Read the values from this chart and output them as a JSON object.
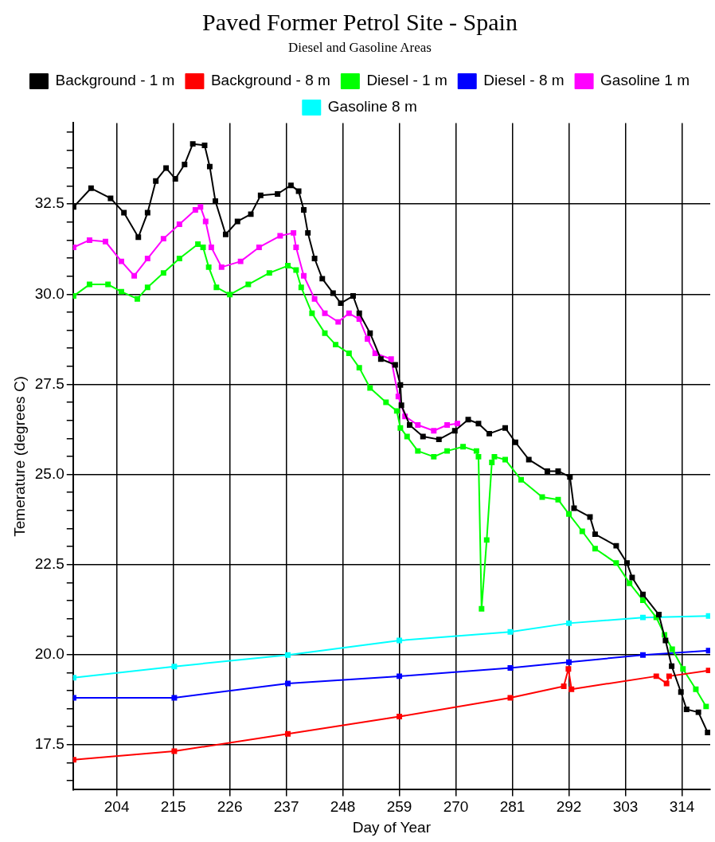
{
  "chart_data": {
    "type": "line",
    "title": "Paved Former Petrol Site - Spain",
    "subtitle": "Diesel and Gasoline Areas",
    "xlabel": "Day of Year",
    "ylabel": "Temerature (degrees C)",
    "xlim": [
      195.5,
      319.5
    ],
    "xticks": [
      204,
      215,
      226,
      237,
      248,
      259,
      270,
      281,
      292,
      303,
      314
    ],
    "ylim": [
      16.25,
      34.75
    ],
    "yticks": [
      {
        "value": 16.5,
        "label": null
      },
      {
        "value": 17,
        "label": null
      },
      {
        "value": 17.5,
        "label": "17.5"
      },
      {
        "value": 18,
        "label": null
      },
      {
        "value": 18.5,
        "label": null
      },
      {
        "value": 19,
        "label": null
      },
      {
        "value": 19.5,
        "label": null
      },
      {
        "value": 20,
        "label": "20.0"
      },
      {
        "value": 20.5,
        "label": null
      },
      {
        "value": 21,
        "label": null
      },
      {
        "value": 21.5,
        "label": null
      },
      {
        "value": 22,
        "label": null
      },
      {
        "value": 22.5,
        "label": "22.5"
      },
      {
        "value": 23,
        "label": null
      },
      {
        "value": 23.5,
        "label": null
      },
      {
        "value": 24,
        "label": null
      },
      {
        "value": 24.5,
        "label": null
      },
      {
        "value": 25,
        "label": "25.0"
      },
      {
        "value": 25.5,
        "label": null
      },
      {
        "value": 26,
        "label": null
      },
      {
        "value": 26.5,
        "label": null
      },
      {
        "value": 27,
        "label": null
      },
      {
        "value": 27.5,
        "label": "27.5"
      },
      {
        "value": 28,
        "label": null
      },
      {
        "value": 28.5,
        "label": null
      },
      {
        "value": 29,
        "label": null
      },
      {
        "value": 29.5,
        "label": null
      },
      {
        "value": 30,
        "label": "30.0"
      },
      {
        "value": 30.5,
        "label": null
      },
      {
        "value": 31,
        "label": null
      },
      {
        "value": 31.5,
        "label": null
      },
      {
        "value": 32,
        "label": null
      },
      {
        "value": 32.5,
        "label": "32.5"
      },
      {
        "value": 33,
        "label": null
      },
      {
        "value": 33.5,
        "label": null
      },
      {
        "value": 34,
        "label": null
      },
      {
        "value": 34.5,
        "label": null
      }
    ],
    "grid": true,
    "legend": "top",
    "marker": "square",
    "line_style": "solid",
    "series": [
      {
        "name": "Background - 1 m",
        "color": "#000000",
        "x": [
          195.6,
          199,
          202.8,
          205.4,
          208.2,
          210,
          211.6,
          213.6,
          215.4,
          217.2,
          218.8,
          221.1,
          222.1,
          223.2,
          225.2,
          227.5,
          230.1,
          232,
          235.3,
          237.9,
          239.4,
          240.4,
          241.2,
          242.5,
          244,
          246.1,
          247.6,
          250,
          251.2,
          253.3,
          255.4,
          258.2,
          259.2,
          259.4,
          261,
          263.6,
          266.7,
          269.8,
          272.4,
          274.4,
          276.5,
          279.6,
          281.6,
          284.2,
          287.8,
          289.9,
          292.2,
          293,
          296.1,
          297.1,
          301.2,
          303.3,
          304.3,
          306.4,
          309.5,
          310.8,
          312,
          313.8,
          314.9,
          317.2,
          319
        ],
        "values": [
          32.42,
          32.94,
          32.66,
          32.26,
          31.58,
          32.26,
          33.14,
          33.5,
          33.2,
          33.6,
          34.17,
          34.13,
          33.54,
          32.58,
          31.66,
          32.02,
          32.22,
          32.74,
          32.78,
          33.02,
          32.86,
          32.34,
          31.7,
          30.99,
          30.43,
          30.03,
          29.75,
          29.95,
          29.47,
          28.92,
          28.2,
          28.04,
          27.48,
          26.92,
          26.37,
          26.05,
          25.97,
          26.21,
          26.52,
          26.41,
          26.13,
          26.29,
          25.89,
          25.41,
          25.09,
          25.09,
          24.93,
          24.06,
          23.82,
          23.34,
          23.02,
          22.54,
          22.14,
          21.67,
          21.11,
          20.39,
          19.68,
          18.96,
          18.48,
          18.4,
          17.84
        ]
      },
      {
        "name": "Background - 8 m",
        "color": "#ff0000",
        "x": [
          195.6,
          215.2,
          237.3,
          259,
          280.6,
          291,
          291.9,
          292.5,
          309,
          311,
          311.5,
          319.2
        ],
        "values": [
          17.08,
          17.32,
          17.8,
          18.28,
          18.8,
          19.12,
          19.6,
          19.04,
          19.4,
          19.2,
          19.4,
          19.56
        ]
      },
      {
        "name": "Diesel - 1 m",
        "color": "#00ff00",
        "x": [
          195.6,
          198.7,
          202.3,
          204.9,
          208,
          210,
          213.1,
          216.2,
          219.8,
          220.8,
          221.9,
          223.4,
          226,
          229.6,
          233.7,
          237.3,
          238.9,
          239.9,
          242,
          244.5,
          246.6,
          249.2,
          251.2,
          253.3,
          256.4,
          258.5,
          259.2,
          260.5,
          262.6,
          265.7,
          268.3,
          271.4,
          274,
          274.4,
          275,
          276,
          277,
          277.5,
          279.6,
          282.7,
          286.8,
          289.9,
          292,
          294.6,
          297.1,
          301.2,
          303.8,
          306.4,
          309,
          310.6,
          312.1,
          314.2,
          316.7,
          318.7
        ],
        "values": [
          29.95,
          30.27,
          30.27,
          30.07,
          29.87,
          30.19,
          30.59,
          30.99,
          31.39,
          31.3,
          30.75,
          30.19,
          29.99,
          30.27,
          30.59,
          30.79,
          30.67,
          30.19,
          29.47,
          28.92,
          28.6,
          28.36,
          27.96,
          27.4,
          27,
          26.76,
          26.29,
          26.05,
          25.65,
          25.49,
          25.65,
          25.77,
          25.65,
          25.49,
          21.27,
          23.18,
          25.33,
          25.49,
          25.41,
          24.85,
          24.37,
          24.3,
          23.9,
          23.42,
          22.94,
          22.54,
          21.98,
          21.51,
          21.03,
          20.55,
          20.15,
          19.6,
          19.04,
          18.56
        ]
      },
      {
        "name": "Diesel - 8 m",
        "color": "#0000ff",
        "x": [
          195.6,
          215.2,
          237.3,
          259,
          280.6,
          292,
          306.4,
          319.2
        ],
        "values": [
          18.8,
          18.8,
          19.2,
          19.4,
          19.63,
          19.79,
          19.99,
          20.11
        ]
      },
      {
        "name": "Gasoline 1 m",
        "color": "#ff00ff",
        "x": [
          195.6,
          198.7,
          201.8,
          204.9,
          207.4,
          210,
          213.1,
          216.2,
          219.3,
          220.3,
          221.3,
          222.4,
          224.4,
          228.1,
          231.7,
          235.8,
          238.4,
          238.9,
          240.4,
          242.5,
          244.5,
          247.1,
          249.2,
          251.2,
          252.8,
          254.3,
          257.4,
          258.8,
          260.1,
          262.6,
          265.7,
          268.3,
          270.3
        ],
        "values": [
          31.3,
          31.5,
          31.46,
          30.91,
          30.51,
          30.99,
          31.54,
          31.94,
          32.34,
          32.42,
          32.02,
          31.3,
          30.75,
          30.91,
          31.3,
          31.62,
          31.7,
          31.3,
          30.51,
          29.87,
          29.47,
          29.23,
          29.47,
          29.31,
          28.76,
          28.36,
          28.2,
          27.16,
          26.61,
          26.37,
          26.21,
          26.37,
          26.41
        ]
      },
      {
        "name": "Gasoline 8 m",
        "color": "#00ffff",
        "x": [
          195.6,
          215.2,
          237.3,
          259,
          280.6,
          292,
          306.4,
          319.2
        ],
        "values": [
          19.36,
          19.67,
          19.99,
          20.39,
          20.63,
          20.87,
          21.03,
          21.07
        ]
      }
    ]
  }
}
